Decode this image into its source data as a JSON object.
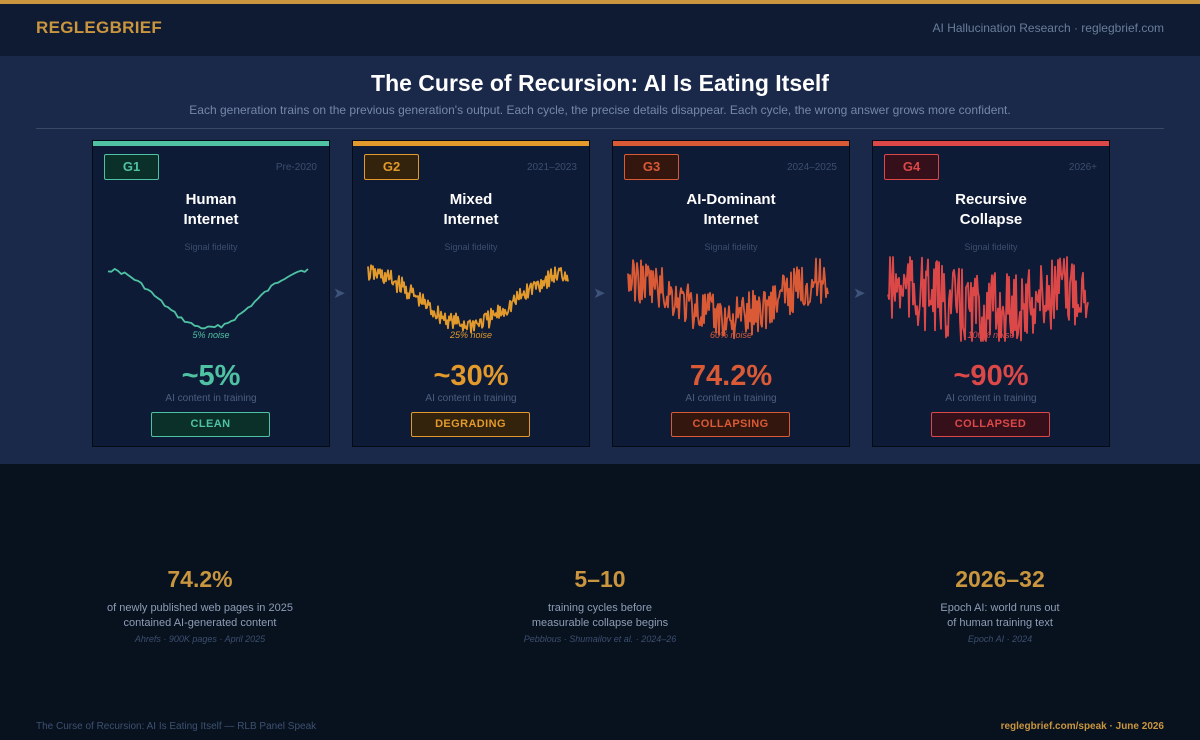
{
  "header": {
    "brand": "REGLEGBRIEF",
    "right_text": "AI Hallucination Research  ·  reglegbrief.com"
  },
  "main": {
    "title": "The Curse of Recursion: AI Is Eating Itself",
    "subtitle": "Each generation trains on the previous generation's output.  Each cycle, the precise details disappear.  Each cycle, the wrong answer grows more confident."
  },
  "cards": [
    {
      "gen": "G1",
      "era": "Pre-2020",
      "title_line1": "Human",
      "title_line2": "Internet",
      "fidelity_label": "Signal fidelity",
      "noise_label": "5% noise",
      "noise_level": 0.05,
      "pct": "~5%",
      "pct_label": "AI content in training",
      "status": "CLEAN",
      "color": "#4fc2a4",
      "badge_bg": "#0a3029"
    },
    {
      "gen": "G2",
      "era": "2021–2023",
      "title_line1": "Mixed",
      "title_line2": "Internet",
      "fidelity_label": "Signal fidelity",
      "noise_label": "25% noise",
      "noise_level": 0.25,
      "pct": "~30%",
      "pct_label": "AI content in training",
      "status": "DEGRADING",
      "color": "#e39a2c",
      "badge_bg": "#33220c"
    },
    {
      "gen": "G3",
      "era": "2024–2025",
      "title_line1": "AI-Dominant",
      "title_line2": "Internet",
      "fidelity_label": "Signal fidelity",
      "noise_label": "60% noise",
      "noise_level": 0.6,
      "pct": "74.2%",
      "pct_label": "AI content in training",
      "status": "COLLAPSING",
      "color": "#da5a36",
      "badge_bg": "#33160e"
    },
    {
      "gen": "G4",
      "era": "2026+",
      "title_line1": "Recursive",
      "title_line2": "Collapse",
      "fidelity_label": "Signal fidelity",
      "noise_label": "100% noise",
      "noise_level": 1.0,
      "pct": "~90%",
      "pct_label": "AI content in training",
      "status": "COLLAPSED",
      "color": "#dc4848",
      "badge_bg": "#35101a"
    }
  ],
  "arrows": [
    "arrow-right-icon",
    "arrow-right-icon",
    "arrow-right-icon"
  ],
  "arrow_glyph": "➤",
  "stats": [
    {
      "value": "74.2%",
      "desc_line1": "of newly published web pages in 2025",
      "desc_line2": "contained AI-generated content",
      "source": "Ahrefs · 900K pages · April 2025"
    },
    {
      "value": "5–10",
      "desc_line1": "training cycles before",
      "desc_line2": "measurable collapse begins",
      "source": "Pebblous · Shumailov et al. · 2024–26"
    },
    {
      "value": "2026–32",
      "desc_line1": "Epoch AI: world runs out",
      "desc_line2": "of human training text",
      "source": "Epoch AI · 2024"
    }
  ],
  "footer": {
    "left": "The Curse of Recursion: AI Is Eating Itself — RLB Panel Speak",
    "right": "reglegbrief.com/speak  ·  June 2026"
  },
  "colors": {
    "accent": "#c9953e",
    "panel_bg": "#1a284a",
    "page_bg": "#08121f"
  }
}
